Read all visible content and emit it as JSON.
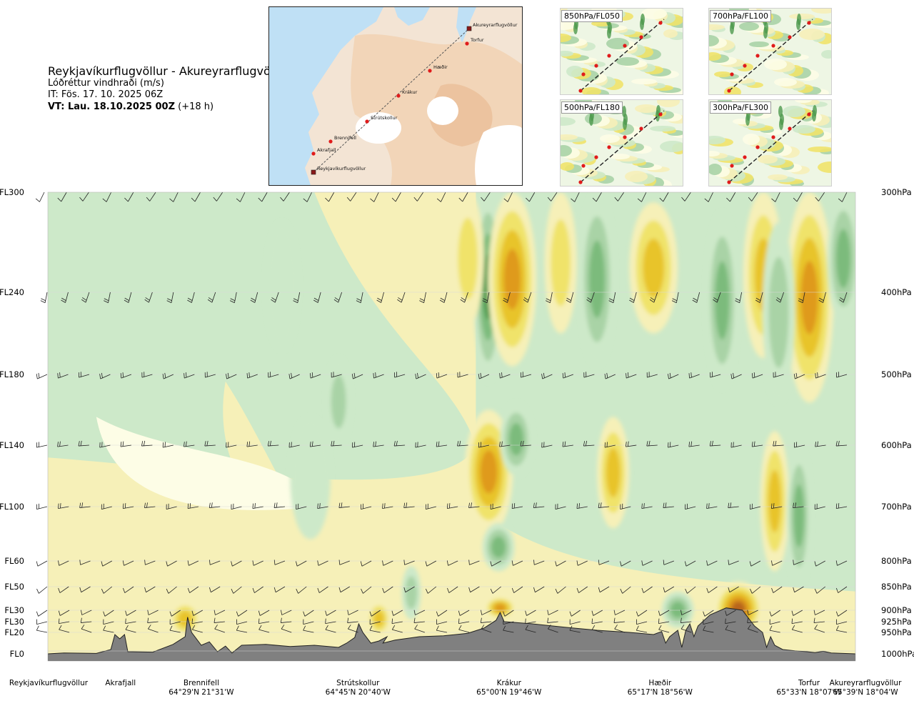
{
  "header": {
    "title": "Reykjavíkurflugvöllur - Akureyrarflugvöllur",
    "variable": "Lóðréttur vindhraði (m/s)",
    "issue": "IT: Fös. 17. 10. 2025 06Z",
    "valid_bold": "VT: Lau. 18.10.2025 00Z",
    "valid_lead": "(+18 h)"
  },
  "route_map": {
    "points": [
      {
        "name": "Akureyrarflugvöllur"
      },
      {
        "name": "Torfur"
      },
      {
        "name": "Hæðir"
      },
      {
        "name": "Krákur"
      },
      {
        "name": "Strútskollur"
      },
      {
        "name": "Brennifell"
      },
      {
        "name": "Akrafjall"
      },
      {
        "name": "Reykjavíkurflugvöllur"
      }
    ]
  },
  "thumbnails": [
    {
      "label": "850hPa/FL050"
    },
    {
      "label": "700hPa/FL100"
    },
    {
      "label": "500hPa/FL180"
    },
    {
      "label": "300hPa/FL300"
    }
  ],
  "chart_data": {
    "type": "heatmap",
    "title": "Reykjavíkurflugvöllur - Akureyrarflugvöllur",
    "variable": "Lóðréttur vindhraði (m/s)",
    "x_axis": "route position from Reykjavíkurflugvöllur (0) to Akureyrarflugvöllur (1)",
    "levels": [
      {
        "fl": "FL300",
        "hpa": "300hPa",
        "value_hpa": 300
      },
      {
        "fl": "FL240",
        "hpa": "400hPa",
        "value_hpa": 400
      },
      {
        "fl": "FL180",
        "hpa": "500hPa",
        "value_hpa": 500
      },
      {
        "fl": "FL140",
        "hpa": "600hPa",
        "value_hpa": 600
      },
      {
        "fl": "FL100",
        "hpa": "700hPa",
        "value_hpa": 700
      },
      {
        "fl": "FL60",
        "hpa": "800hPa",
        "value_hpa": 800
      },
      {
        "fl": "FL50",
        "hpa": "850hPa",
        "value_hpa": 850
      },
      {
        "fl": "FL30",
        "hpa": "900hPa",
        "value_hpa": 900
      },
      {
        "fl": "FL30",
        "hpa": "925hPa",
        "value_hpa": 925
      },
      {
        "fl": "FL20",
        "hpa": "950hPa",
        "value_hpa": 950
      },
      {
        "fl": "FL0",
        "hpa": "1000hPa",
        "value_hpa": 1000
      }
    ],
    "locations": [
      {
        "name": "Reykjavíkurflugvöllur",
        "coord": "",
        "pos": 0.0
      },
      {
        "name": "Akrafjall",
        "coord": "",
        "pos": 0.09
      },
      {
        "name": "Brennifell",
        "coord": "64°29'N 21°31'W",
        "pos": 0.19
      },
      {
        "name": "Strútskollur",
        "coord": "64°45'N 20°40'W",
        "pos": 0.384
      },
      {
        "name": "Krákur",
        "coord": "65°00'N 19°46'W",
        "pos": 0.571
      },
      {
        "name": "Hæðir",
        "coord": "65°17'N 18°56'W",
        "pos": 0.758
      },
      {
        "name": "Torfur",
        "coord": "65°33'N 18°07'W",
        "pos": 0.938
      },
      {
        "name": "Akureyrarflugvöllur",
        "coord": "65°39'N 18°04'W",
        "pos": 1.0
      }
    ],
    "colors": {
      "strong_down": "#4e9a4e",
      "down": "#7cbb7c",
      "weak_down": "#a9d3a6",
      "neutral_down": "#cde9c9",
      "neutral": "#fdfde6",
      "neutral_up": "#f6f0b8",
      "weak_up": "#f0e36a",
      "up": "#e8c42a",
      "strong_up": "#df9a1c",
      "very_strong_up": "#b8651a",
      "terrain": "#808080"
    },
    "features": [
      {
        "kind": "down",
        "cx": 0.545,
        "top": 300,
        "bottom": 510,
        "width": 0.018,
        "strength": 3
      },
      {
        "kind": "up",
        "cx": 0.575,
        "top": 300,
        "bottom": 490,
        "width": 0.03,
        "strength": 3
      },
      {
        "kind": "up",
        "cx": 0.546,
        "top": 550,
        "bottom": 750,
        "width": 0.03,
        "strength": 3
      },
      {
        "kind": "down",
        "cx": 0.58,
        "top": 540,
        "bottom": 650,
        "width": 0.02,
        "strength": 2
      },
      {
        "kind": "down",
        "cx": 0.558,
        "top": 730,
        "bottom": 820,
        "width": 0.02,
        "strength": 2
      },
      {
        "kind": "up",
        "cx": 0.943,
        "top": 300,
        "bottom": 540,
        "width": 0.03,
        "strength": 3
      },
      {
        "kind": "up",
        "cx": 0.886,
        "top": 300,
        "bottom": 480,
        "width": 0.025,
        "strength": 2
      },
      {
        "kind": "up",
        "cx": 0.75,
        "top": 310,
        "bottom": 450,
        "width": 0.03,
        "strength": 2
      },
      {
        "kind": "up",
        "cx": 0.635,
        "top": 300,
        "bottom": 450,
        "width": 0.02,
        "strength": 1
      },
      {
        "kind": "up",
        "cx": 0.52,
        "top": 300,
        "bottom": 440,
        "width": 0.02,
        "strength": 1
      },
      {
        "kind": "down",
        "cx": 0.68,
        "top": 300,
        "bottom": 490,
        "width": 0.022,
        "strength": 2
      },
      {
        "kind": "down",
        "cx": 0.835,
        "top": 320,
        "bottom": 520,
        "width": 0.02,
        "strength": 2
      },
      {
        "kind": "down",
        "cx": 0.905,
        "top": 330,
        "bottom": 540,
        "width": 0.02,
        "strength": 1
      },
      {
        "kind": "down",
        "cx": 0.985,
        "top": 300,
        "bottom": 440,
        "width": 0.02,
        "strength": 2
      },
      {
        "kind": "up",
        "cx": 0.7,
        "top": 560,
        "bottom": 740,
        "width": 0.02,
        "strength": 2
      },
      {
        "kind": "up",
        "cx": 0.9,
        "top": 580,
        "bottom": 820,
        "width": 0.018,
        "strength": 2
      },
      {
        "kind": "down",
        "cx": 0.93,
        "top": 600,
        "bottom": 850,
        "width": 0.015,
        "strength": 2
      },
      {
        "kind": "up",
        "cx": 0.17,
        "top": 880,
        "bottom": 960,
        "width": 0.02,
        "strength": 2
      },
      {
        "kind": "up",
        "cx": 0.41,
        "top": 880,
        "bottom": 960,
        "width": 0.015,
        "strength": 2
      },
      {
        "kind": "up",
        "cx": 0.56,
        "top": 870,
        "bottom": 920,
        "width": 0.02,
        "strength": 3
      },
      {
        "kind": "up",
        "cx": 0.855,
        "top": 840,
        "bottom": 960,
        "width": 0.03,
        "strength": 4
      },
      {
        "kind": "down",
        "cx": 0.78,
        "top": 860,
        "bottom": 940,
        "width": 0.02,
        "strength": 2
      },
      {
        "kind": "down",
        "cx": 0.45,
        "top": 810,
        "bottom": 920,
        "width": 0.012,
        "strength": 1
      },
      {
        "kind": "down",
        "cx": 0.325,
        "top": 560,
        "bottom": 760,
        "width": 0.025,
        "strength": 0
      },
      {
        "kind": "down",
        "cx": 0.29,
        "top": 330,
        "bottom": 470,
        "width": 0.02,
        "strength": 0
      },
      {
        "kind": "down",
        "cx": 0.36,
        "top": 480,
        "bottom": 600,
        "width": 0.015,
        "strength": 1
      }
    ],
    "terrain": [
      [
        0.0,
        1000
      ],
      [
        0.02,
        998
      ],
      [
        0.06,
        999
      ],
      [
        0.078,
        990
      ],
      [
        0.083,
        955
      ],
      [
        0.089,
        965
      ],
      [
        0.095,
        955
      ],
      [
        0.099,
        995
      ],
      [
        0.13,
        996
      ],
      [
        0.155,
        978
      ],
      [
        0.17,
        960
      ],
      [
        0.173,
        915
      ],
      [
        0.178,
        950
      ],
      [
        0.19,
        980
      ],
      [
        0.2,
        972
      ],
      [
        0.21,
        995
      ],
      [
        0.22,
        982
      ],
      [
        0.228,
        998
      ],
      [
        0.24,
        980
      ],
      [
        0.27,
        978
      ],
      [
        0.3,
        983
      ],
      [
        0.33,
        980
      ],
      [
        0.36,
        985
      ],
      [
        0.37,
        975
      ],
      [
        0.38,
        962
      ],
      [
        0.385,
        930
      ],
      [
        0.39,
        950
      ],
      [
        0.4,
        975
      ],
      [
        0.41,
        970
      ],
      [
        0.42,
        960
      ],
      [
        0.415,
        975
      ],
      [
        0.43,
        968
      ],
      [
        0.46,
        960
      ],
      [
        0.49,
        958
      ],
      [
        0.52,
        952
      ],
      [
        0.54,
        940
      ],
      [
        0.555,
        922
      ],
      [
        0.56,
        905
      ],
      [
        0.565,
        925
      ],
      [
        0.6,
        930
      ],
      [
        0.64,
        938
      ],
      [
        0.68,
        945
      ],
      [
        0.72,
        950
      ],
      [
        0.75,
        955
      ],
      [
        0.76,
        948
      ],
      [
        0.765,
        975
      ],
      [
        0.77,
        960
      ],
      [
        0.78,
        945
      ],
      [
        0.785,
        985
      ],
      [
        0.79,
        945
      ],
      [
        0.795,
        930
      ],
      [
        0.8,
        960
      ],
      [
        0.805,
        935
      ],
      [
        0.82,
        910
      ],
      [
        0.84,
        895
      ],
      [
        0.86,
        900
      ],
      [
        0.875,
        935
      ],
      [
        0.885,
        950
      ],
      [
        0.89,
        985
      ],
      [
        0.895,
        960
      ],
      [
        0.9,
        980
      ],
      [
        0.91,
        990
      ],
      [
        0.925,
        993
      ],
      [
        0.94,
        995
      ],
      [
        0.95,
        997
      ],
      [
        0.96,
        994
      ],
      [
        0.97,
        998
      ],
      [
        1.0,
        1000
      ]
    ],
    "wind_barbs_note": "wind barbs drawn along every pressure level"
  }
}
